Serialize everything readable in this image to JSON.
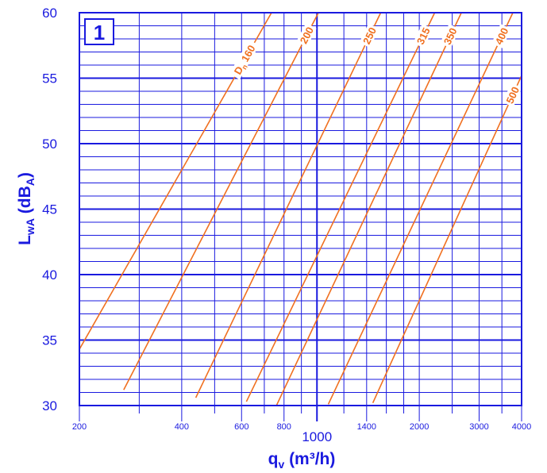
{
  "chart_data": {
    "type": "line",
    "panel_label": "1",
    "x_scale": "log",
    "xlim": [
      200,
      4000
    ],
    "ylim": [
      30,
      60
    ],
    "xlabel": {
      "main": "q",
      "sub": "v",
      "unit": " (m³/h)"
    },
    "ylabel": {
      "main": "L",
      "sub": "wA",
      "paren": " (dB",
      "sub2": "A",
      "close": ")"
    },
    "y_ticks": [
      30,
      35,
      40,
      45,
      50,
      55,
      60
    ],
    "x_ticks": [
      "200",
      "400",
      "600",
      "800",
      "1000",
      "1400",
      "2000",
      "3000",
      "4000"
    ],
    "x_tick_values": [
      200,
      400,
      600,
      800,
      1000,
      1400,
      2000,
      3000,
      4000
    ],
    "x_minor_grid": [
      300,
      500,
      700,
      900,
      1200,
      1600,
      1800,
      2500,
      3500
    ],
    "grid": true,
    "series": [
      {
        "name": "Dn 160",
        "label_main": "D",
        "label_sub": "n",
        "label_value": "160",
        "x": [
          200,
          735
        ],
        "y": [
          34.3,
          60
        ]
      },
      {
        "name": "200",
        "label_main": "",
        "label_sub": "",
        "label_value": "200",
        "x": [
          270,
          1010
        ],
        "y": [
          31.2,
          60
        ]
      },
      {
        "name": "250",
        "label_main": "",
        "label_sub": "",
        "label_value": "250",
        "x": [
          440,
          1540
        ],
        "y": [
          30.6,
          60
        ]
      },
      {
        "name": "315",
        "label_main": "",
        "label_sub": "",
        "label_value": "315",
        "x": [
          620,
          2220
        ],
        "y": [
          30.3,
          60
        ]
      },
      {
        "name": "350",
        "label_main": "",
        "label_sub": "",
        "label_value": "350",
        "x": [
          760,
          2660
        ],
        "y": [
          30.0,
          60
        ]
      },
      {
        "name": "400",
        "label_main": "",
        "label_sub": "",
        "label_value": "400",
        "x": [
          1080,
          3770
        ],
        "y": [
          30.1,
          60
        ]
      },
      {
        "name": "500",
        "label_main": "",
        "label_sub": "",
        "label_value": "500",
        "x": [
          1460,
          4000
        ],
        "y": [
          30.2,
          55.2
        ]
      }
    ],
    "colors": {
      "axis": "#1a1adf",
      "curve": "#f07020",
      "background": "#ffffff"
    }
  }
}
